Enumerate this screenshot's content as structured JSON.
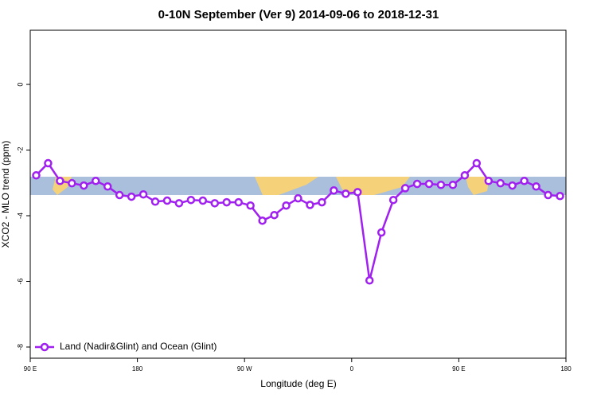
{
  "chart_data": {
    "type": "line",
    "title": "0-10N September (Ver 9)   2014-09-06 to 2018-12-31",
    "x_label": "Longitude (deg E)",
    "y_label": "XCO2 - MLO trend (ppm)",
    "x": [
      95,
      105,
      115,
      125,
      135,
      145,
      155,
      165,
      175,
      185,
      195,
      205,
      215,
      225,
      235,
      245,
      255,
      265,
      275,
      285,
      295,
      305,
      315,
      325,
      335,
      345,
      355,
      365,
      375,
      385,
      395,
      405,
      415,
      425,
      435,
      445,
      455,
      465,
      475,
      485,
      495,
      505,
      515,
      525,
      535
    ],
    "series": [
      {
        "name": "Land (Nadir&Glint) and Ocean (Glint)",
        "color": "#a020f0",
        "values": [
          -2.77,
          -2.4,
          -2.94,
          -3.01,
          -3.08,
          -2.94,
          -3.11,
          -3.37,
          -3.42,
          -3.35,
          -3.57,
          -3.54,
          -3.62,
          -3.52,
          -3.54,
          -3.62,
          -3.59,
          -3.59,
          -3.69,
          -4.15,
          -3.98,
          -3.69,
          -3.47,
          -3.67,
          -3.59,
          -3.23,
          -3.33,
          -3.28,
          -5.97,
          -4.51,
          -3.52,
          -3.16,
          -3.03,
          -3.03,
          -3.06,
          -3.06,
          -2.77,
          -2.4,
          -2.94,
          -3.01,
          -3.08,
          -2.94,
          -3.11,
          -3.37,
          -3.4
        ]
      }
    ],
    "xlim": [
      90,
      540
    ],
    "xticks": [
      {
        "value": 90,
        "label": "90 E"
      },
      {
        "value": 180,
        "label": "180"
      },
      {
        "value": 270,
        "label": "90 W"
      },
      {
        "value": 360,
        "label": "0"
      },
      {
        "value": 450,
        "label": "90 E"
      },
      {
        "value": 540,
        "label": "180"
      }
    ],
    "ylim": [
      -8.34,
      1.65
    ],
    "yticks": [
      0,
      -2,
      -4,
      -6,
      -8
    ],
    "legend": "bottom-left"
  }
}
